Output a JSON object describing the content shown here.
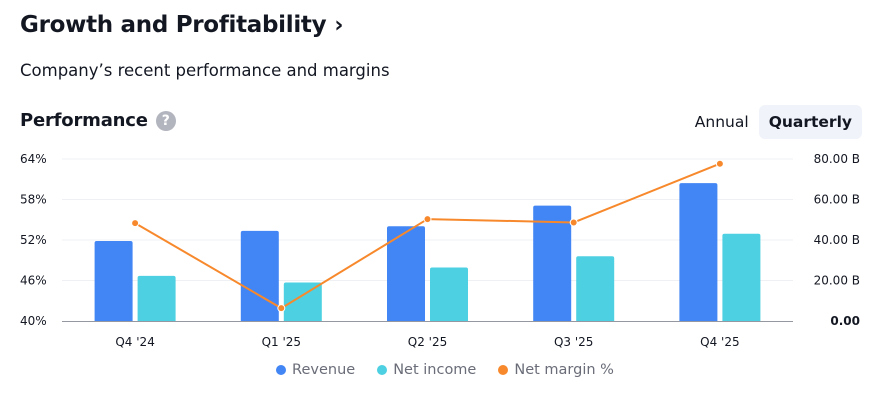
{
  "header": {
    "title": "Growth and Profitability",
    "chevron": "›",
    "subtitle": "Company’s recent performance and margins"
  },
  "performance": {
    "title": "Performance",
    "help_glyph": "?",
    "help_icon": "question-circle-icon",
    "toggle": [
      {
        "label": "Annual",
        "active": false
      },
      {
        "label": "Quarterly",
        "active": true
      }
    ]
  },
  "chart_data": {
    "type": "bar",
    "categories": [
      "Q4 '24",
      "Q1 '25",
      "Q2 '25",
      "Q3 '25",
      "Q4 '25"
    ],
    "series": [
      {
        "name": "Revenue",
        "type": "bar",
        "axis": "right",
        "color": "#4285f4",
        "values": [
          39.5,
          44.5,
          46.8,
          57.0,
          68.1
        ]
      },
      {
        "name": "Net income",
        "type": "bar",
        "axis": "right",
        "color": "#4dd0e1",
        "values": [
          22.3,
          19.0,
          26.4,
          32.0,
          43.1
        ]
      },
      {
        "name": "Net margin %",
        "type": "line",
        "axis": "left",
        "color": "#f7892c",
        "values": [
          54.5,
          41.9,
          55.1,
          54.6,
          63.3
        ]
      }
    ],
    "left_axis": {
      "ticks": [
        "64%",
        "58%",
        "52%",
        "46%",
        "40%"
      ],
      "ylim": [
        40,
        64
      ]
    },
    "right_axis": {
      "ticks": [
        "80.00 B",
        "60.00 B",
        "40.00 B",
        "20.00 B",
        "0.00"
      ],
      "ylim": [
        0,
        80
      ]
    },
    "grid": true,
    "legend_position": "bottom-center"
  }
}
